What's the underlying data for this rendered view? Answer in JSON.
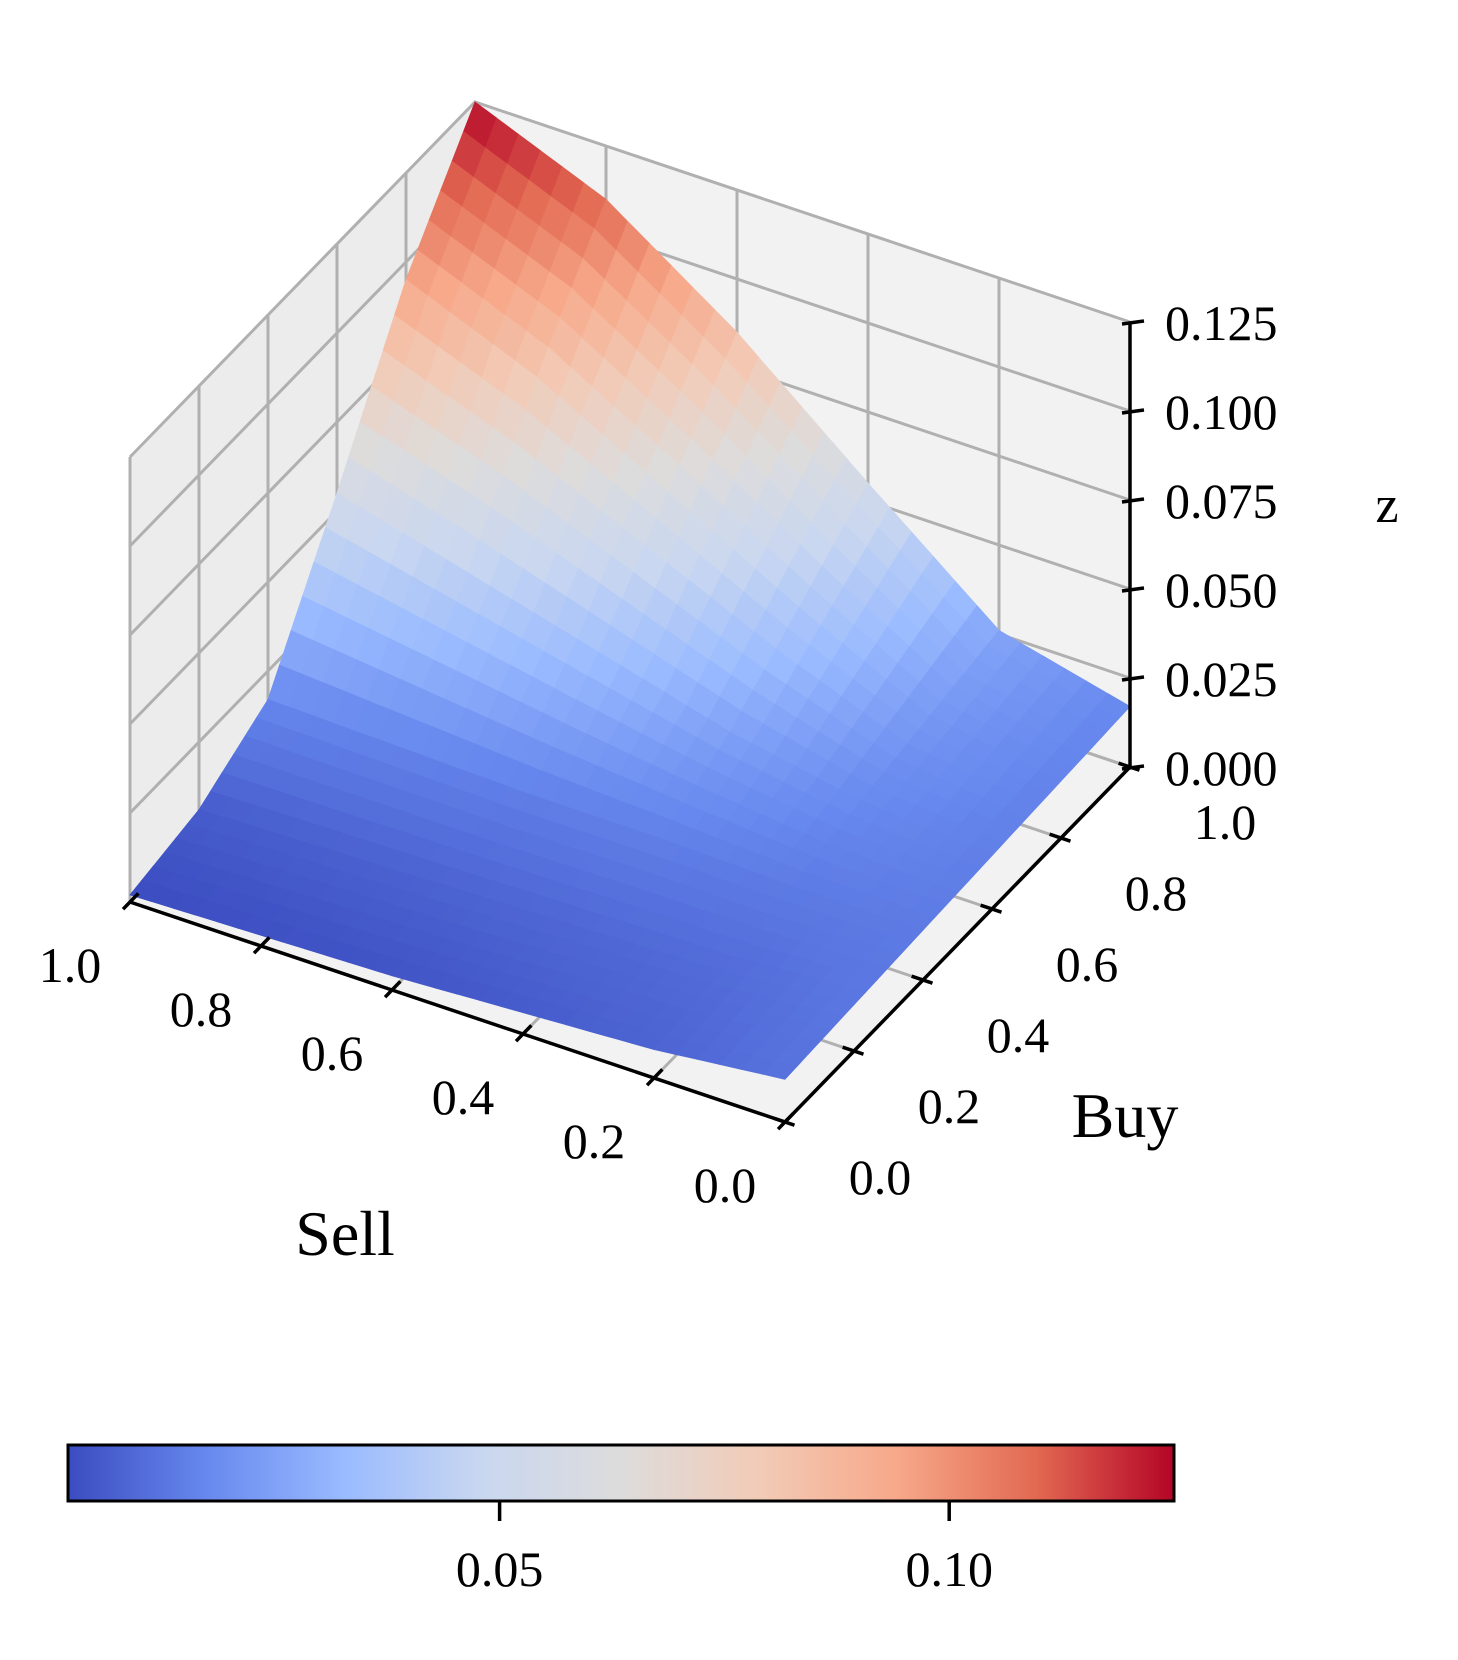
{
  "chart_data": {
    "type": "surface",
    "xlabel": "Sell",
    "ylabel": "Buy",
    "zlabel": "z",
    "xlim": [
      0,
      1
    ],
    "ylim": [
      0,
      1
    ],
    "zlim": [
      0,
      0.125
    ],
    "x_ticks": [
      "0.0",
      "0.2",
      "0.4",
      "0.6",
      "0.8",
      "1.0"
    ],
    "y_ticks": [
      "0.0",
      "0.2",
      "0.4",
      "0.6",
      "0.8",
      "1.0"
    ],
    "z_ticks": [
      "0.000",
      "0.025",
      "0.050",
      "0.075",
      "0.100",
      "0.125"
    ],
    "grid": true,
    "colormap": "coolwarm",
    "colormap_stops": [
      "#3b4cc0",
      "#6788ee",
      "#9abbff",
      "#c9d7f0",
      "#dddcdc",
      "#f2cbb7",
      "#f7a889",
      "#e26952",
      "#b40426"
    ],
    "surface": {
      "x": [
        0.0,
        0.2,
        0.4,
        0.6,
        0.8,
        1.0
      ],
      "y": [
        0.0,
        0.2,
        0.4,
        0.6,
        0.8,
        1.0
      ],
      "z_rows_by_y": [
        [
          0.012,
          0.008,
          0.006,
          0.004,
          0.003,
          0.002
        ],
        [
          0.013,
          0.01,
          0.009,
          0.008,
          0.007,
          0.006
        ],
        [
          0.014,
          0.014,
          0.015,
          0.015,
          0.016,
          0.017
        ],
        [
          0.015,
          0.018,
          0.025,
          0.035,
          0.045,
          0.055
        ],
        [
          0.016,
          0.022,
          0.04,
          0.06,
          0.08,
          0.095
        ],
        [
          0.017,
          0.026,
          0.055,
          0.085,
          0.11,
          0.125
        ]
      ]
    },
    "colorbar": {
      "orientation": "horizontal",
      "range": [
        0.002,
        0.125
      ],
      "ticks": [
        0.05,
        0.1
      ],
      "tick_labels": [
        "0.05",
        "0.10"
      ]
    }
  }
}
